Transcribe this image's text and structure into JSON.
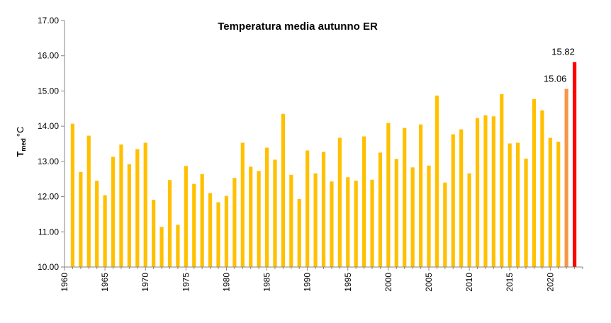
{
  "chart_data": {
    "type": "bar",
    "title": "Temperatura media autunno ER",
    "ylabel_main": "T",
    "ylabel_sub": "med",
    "ylabel_unit": "°C",
    "xlabel": "",
    "ylim": [
      10,
      17
    ],
    "y_ticks": [
      "10.00",
      "11.00",
      "12.00",
      "13.00",
      "14.00",
      "15.00",
      "16.00",
      "17.00"
    ],
    "x_ticks": [
      "1960",
      "1965",
      "1970",
      "1975",
      "1980",
      "1985",
      "1990",
      "1995",
      "2000",
      "2005",
      "2010",
      "2015",
      "2020"
    ],
    "grid": false,
    "legend": "none",
    "colors": {
      "default": "#FFC000",
      "previous_year": "#F79646",
      "latest_year": "#FF0000"
    },
    "series": [
      {
        "x": [
          1961,
          1962,
          1963,
          1964,
          1965,
          1966,
          1967,
          1968,
          1969,
          1970,
          1971,
          1972,
          1973,
          1974,
          1975,
          1976,
          1977,
          1978,
          1979,
          1980,
          1981,
          1982,
          1983,
          1984,
          1985,
          1986,
          1987,
          1988,
          1989,
          1990,
          1991,
          1992,
          1993,
          1994,
          1995,
          1996,
          1997,
          1998,
          1999,
          2000,
          2001,
          2002,
          2003,
          2004,
          2005,
          2006,
          2007,
          2008,
          2009,
          2010,
          2011,
          2012,
          2013,
          2014,
          2015,
          2016,
          2017,
          2018,
          2019,
          2020,
          2021,
          2022,
          2023
        ],
        "values": [
          14.07,
          12.7,
          13.73,
          12.45,
          12.04,
          13.13,
          13.48,
          12.92,
          13.35,
          13.53,
          11.91,
          11.14,
          12.47,
          11.2,
          12.87,
          12.36,
          12.64,
          12.1,
          11.84,
          12.02,
          12.53,
          13.53,
          12.85,
          12.73,
          13.39,
          13.05,
          14.35,
          12.62,
          11.93,
          13.31,
          12.66,
          13.27,
          12.43,
          13.67,
          12.55,
          12.45,
          13.71,
          12.48,
          13.25,
          14.09,
          13.07,
          13.95,
          12.83,
          14.05,
          12.88,
          14.87,
          12.4,
          13.77,
          13.91,
          12.66,
          14.23,
          14.31,
          14.28,
          14.91,
          13.51,
          13.53,
          13.08,
          14.77,
          14.45,
          13.67,
          13.56,
          15.06,
          15.82
        ]
      }
    ],
    "annotations": [
      {
        "x": 2022,
        "text": "15.06"
      },
      {
        "x": 2023,
        "text": "15.82"
      }
    ]
  }
}
